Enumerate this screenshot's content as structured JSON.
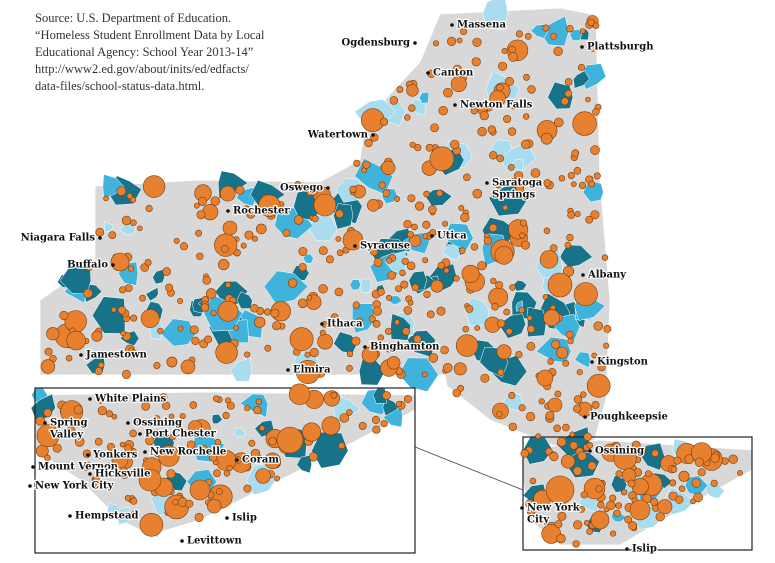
{
  "source": [
    "Source: U.S. Department of Education.",
    "“Homeless Student Enrollment Data by Local",
    "Educational Agency: School Year 2013-14”",
    "http://www2.ed.gov/about/inits/ed/edfacts/",
    "data-files/school-status-data.html."
  ],
  "main_map": {
    "labels": [
      [
        "Massena"
      ],
      [
        "Ogdensburg"
      ],
      [
        "Canton"
      ],
      [
        "Plattsburgh"
      ],
      [
        "Newton Falls"
      ],
      [
        "Watertown"
      ],
      [
        "Oswego"
      ],
      [
        "Saratoga",
        "Springs"
      ],
      [
        "Rochester"
      ],
      [
        "Niagara Falls"
      ],
      [
        "Utica"
      ],
      [
        "Syracuse"
      ],
      [
        "Buffalo"
      ],
      [
        "Albany"
      ],
      [
        "Ithaca"
      ],
      [
        "Binghamton"
      ],
      [
        "Jamestown"
      ],
      [
        "Elmira"
      ],
      [
        "Kingston"
      ],
      [
        "Poughkeepsie"
      ]
    ]
  },
  "inset_left": {
    "labels": [
      [
        "White Plains"
      ],
      [
        "Spring",
        "Valley"
      ],
      [
        "Ossining"
      ],
      [
        "Port Chester"
      ],
      [
        "New Rochelle"
      ],
      [
        "Yonkers"
      ],
      [
        "Mount Vernon"
      ],
      [
        "Hicksville"
      ],
      [
        "New York City"
      ],
      [
        "Coram"
      ],
      [
        "Hempstead"
      ],
      [
        "Islip"
      ],
      [
        "Levittown"
      ]
    ]
  },
  "inset_right": {
    "labels": [
      [
        "Ossining"
      ],
      [
        "New York",
        "City"
      ],
      [
        "Islip"
      ]
    ]
  }
}
